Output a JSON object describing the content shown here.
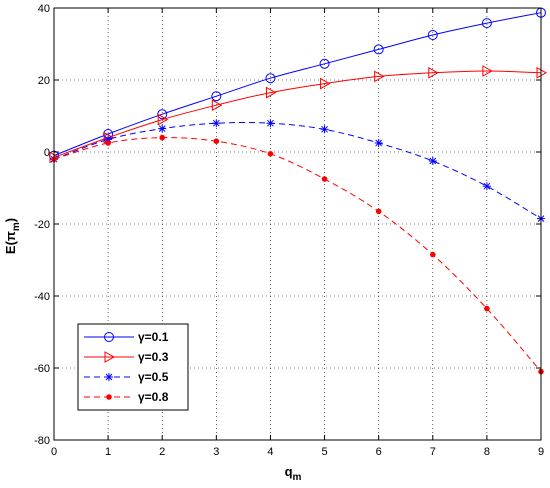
{
  "chart_data": {
    "type": "line",
    "xlabel": "q",
    "xlabel_sub": "m",
    "ylabel": "E(π",
    "ylabel_sub": "m",
    "ylabel_close": ")",
    "xlim": [
      0,
      9
    ],
    "ylim": [
      -80,
      40
    ],
    "xticks": [
      0,
      1,
      2,
      3,
      4,
      5,
      6,
      7,
      8,
      9
    ],
    "yticks": [
      -80,
      -60,
      -40,
      -20,
      0,
      20,
      40
    ],
    "grid": true,
    "legend_position": "bottom-left",
    "x": [
      0,
      1,
      2,
      3,
      4,
      5,
      6,
      7,
      8,
      9
    ],
    "series": [
      {
        "name": "γ=0.1",
        "color": "#0000ff",
        "linestyle": "solid",
        "marker": "circle",
        "values": [
          -1,
          5,
          10.5,
          15.5,
          20.5,
          24.5,
          28.5,
          32.5,
          35.8,
          38.7
        ]
      },
      {
        "name": "γ=0.3",
        "color": "#ff0000",
        "linestyle": "solid",
        "marker": "triangle-right",
        "values": [
          -1.5,
          4,
          9,
          13,
          16.5,
          19,
          21,
          22,
          22.5,
          22
        ]
      },
      {
        "name": "γ=0.5",
        "color": "#0000ff",
        "linestyle": "dashed",
        "marker": "star",
        "values": [
          -2,
          3.5,
          6.5,
          8,
          8,
          6.3,
          2.5,
          -2.5,
          -9.5,
          -18.5
        ]
      },
      {
        "name": "γ=0.8",
        "color": "#ff0000",
        "linestyle": "dashed",
        "marker": "dot",
        "values": [
          -2,
          2.5,
          4,
          3,
          -0.5,
          -7.5,
          -16.5,
          -28.5,
          -43.5,
          -61
        ]
      }
    ]
  }
}
